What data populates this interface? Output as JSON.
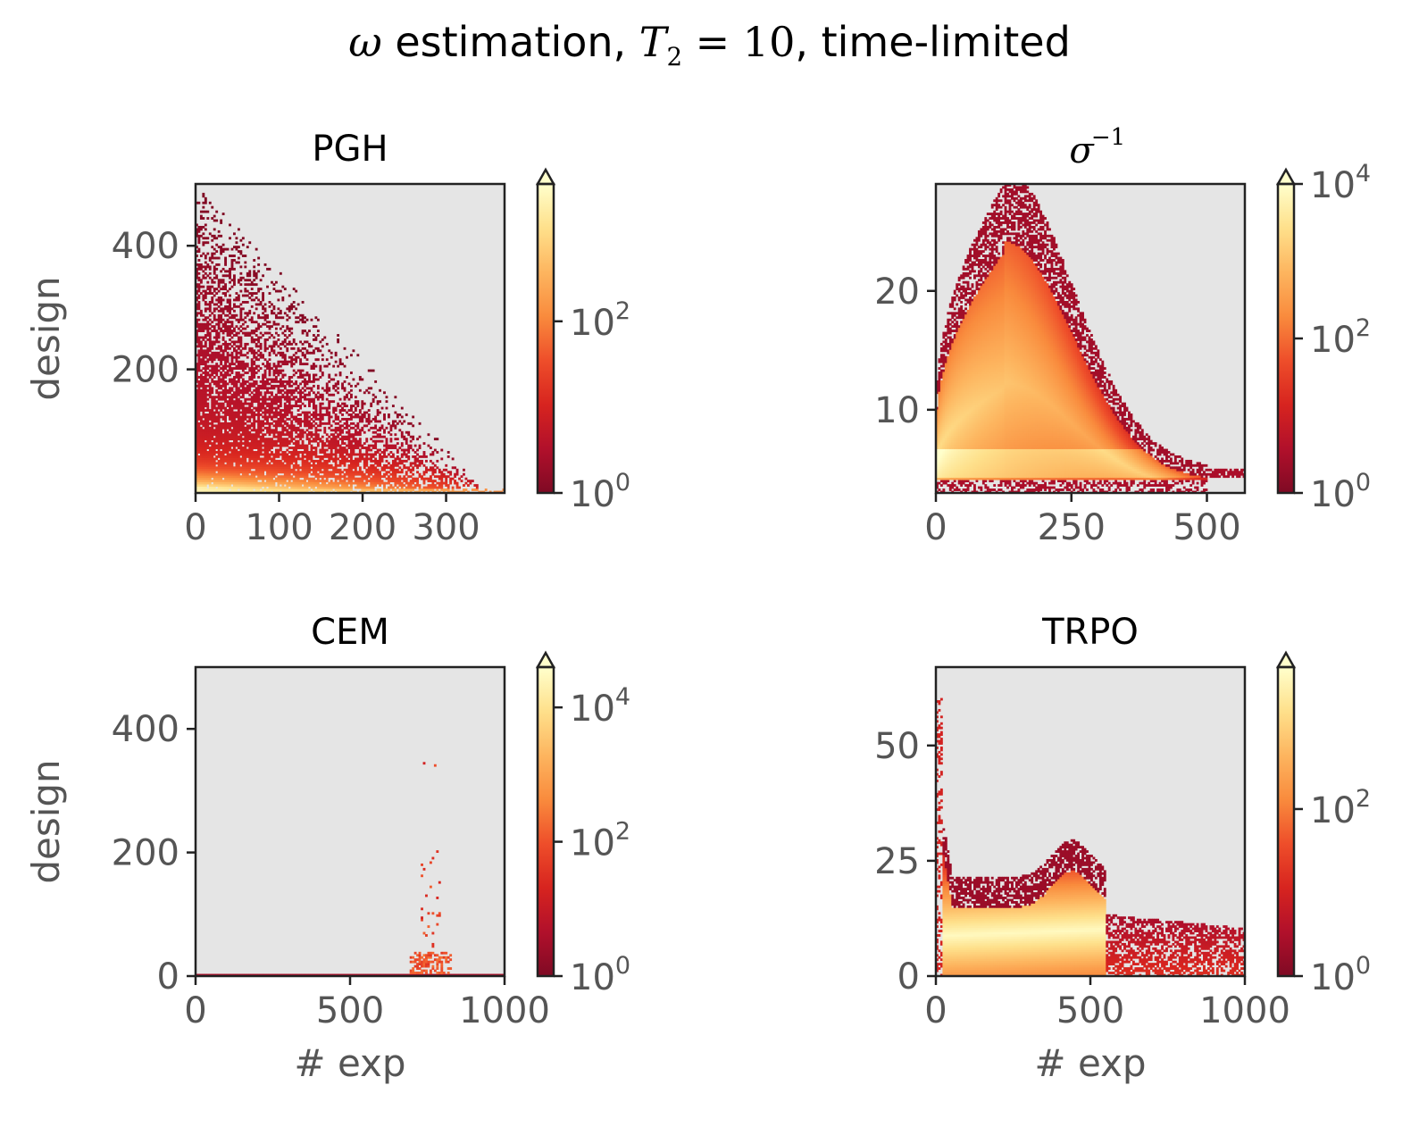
{
  "figure": {
    "title_prefix": "ω",
    "title_mid_1": " estimation, ",
    "title_math_T": "T",
    "title_math_sub": "2",
    "title_math_eq": " = 10",
    "title_suffix": ", time-limited"
  },
  "colormap": [
    "#7f0a24",
    "#b1102b",
    "#d7241f",
    "#ee4e2a",
    "#f98b3d",
    "#fdb55f",
    "#fee08b",
    "#ffffcc"
  ],
  "colors": {
    "background_empty": "#e5e5e5",
    "axis": "#222222",
    "tick_text": "#555555"
  },
  "chart_data": [
    {
      "type": "heatmap",
      "title": "PGH",
      "title_style": "text",
      "xlabel": "",
      "ylabel": "design",
      "xlim": [
        0,
        370
      ],
      "ylim": [
        0,
        500
      ],
      "xticks": [
        0,
        100,
        200,
        300
      ],
      "xticklabels": [
        "0",
        "100",
        "200",
        "300"
      ],
      "yticks": [
        200,
        400
      ],
      "yticklabels": [
        "200",
        "400"
      ],
      "colorbar": {
        "scale": "log",
        "extend": "max",
        "log_min": 0,
        "log_max": 3.6,
        "ticks": [
          0,
          2
        ],
        "ticklabels": [
          {
            "base": "10",
            "exp": "0"
          },
          {
            "base": "10",
            "exp": "2"
          }
        ]
      },
      "shape": "decay",
      "density_note_fraction_at_design_0": 1.0
    },
    {
      "type": "heatmap",
      "title": "σ",
      "title_exp": "−1",
      "title_style": "math",
      "xlabel": "",
      "ylabel": "",
      "xlim": [
        0,
        570
      ],
      "ylim": [
        3,
        29
      ],
      "xticks": [
        0,
        250,
        500
      ],
      "xticklabels": [
        "0",
        "250",
        "500"
      ],
      "yticks": [
        10,
        20
      ],
      "yticklabels": [
        "10",
        "20"
      ],
      "colorbar": {
        "scale": "log",
        "extend": "max",
        "log_min": 0,
        "log_max": 4,
        "ticks": [
          0,
          2,
          4
        ],
        "ticklabels": [
          {
            "base": "10",
            "exp": "0"
          },
          {
            "base": "10",
            "exp": "2"
          },
          {
            "base": "10",
            "exp": "4"
          }
        ]
      },
      "shape": "hump"
    },
    {
      "type": "heatmap",
      "title": "CEM",
      "title_style": "text",
      "xlabel": "# exp",
      "ylabel": "design",
      "xlim": [
        0,
        1000
      ],
      "ylim": [
        0,
        500
      ],
      "xticks": [
        0,
        500,
        1000
      ],
      "xticklabels": [
        "0",
        "500",
        "1000"
      ],
      "yticks": [
        0,
        200,
        400
      ],
      "yticklabels": [
        "0",
        "200",
        "400"
      ],
      "colorbar": {
        "scale": "log",
        "extend": "max",
        "log_min": 0,
        "log_max": 4.6,
        "ticks": [
          0,
          2,
          4
        ],
        "ticklabels": [
          {
            "base": "10",
            "exp": "0"
          },
          {
            "base": "10",
            "exp": "2"
          },
          {
            "base": "10",
            "exp": "4"
          }
        ]
      },
      "shape": "spike"
    },
    {
      "type": "heatmap",
      "title": "TRPO",
      "title_style": "text",
      "xlabel": "# exp",
      "ylabel": "",
      "xlim": [
        0,
        1000
      ],
      "ylim": [
        0,
        67
      ],
      "xticks": [
        0,
        500,
        1000
      ],
      "xticklabels": [
        "0",
        "500",
        "1000"
      ],
      "yticks": [
        0,
        25,
        50
      ],
      "yticklabels": [
        "0",
        "25",
        "50"
      ],
      "colorbar": {
        "scale": "log",
        "extend": "max",
        "log_min": 0,
        "log_max": 3.7,
        "ticks": [
          0,
          2
        ],
        "ticklabels": [
          {
            "base": "10",
            "exp": "0"
          },
          {
            "base": "10",
            "exp": "2"
          }
        ]
      },
      "shape": "wave"
    }
  ]
}
